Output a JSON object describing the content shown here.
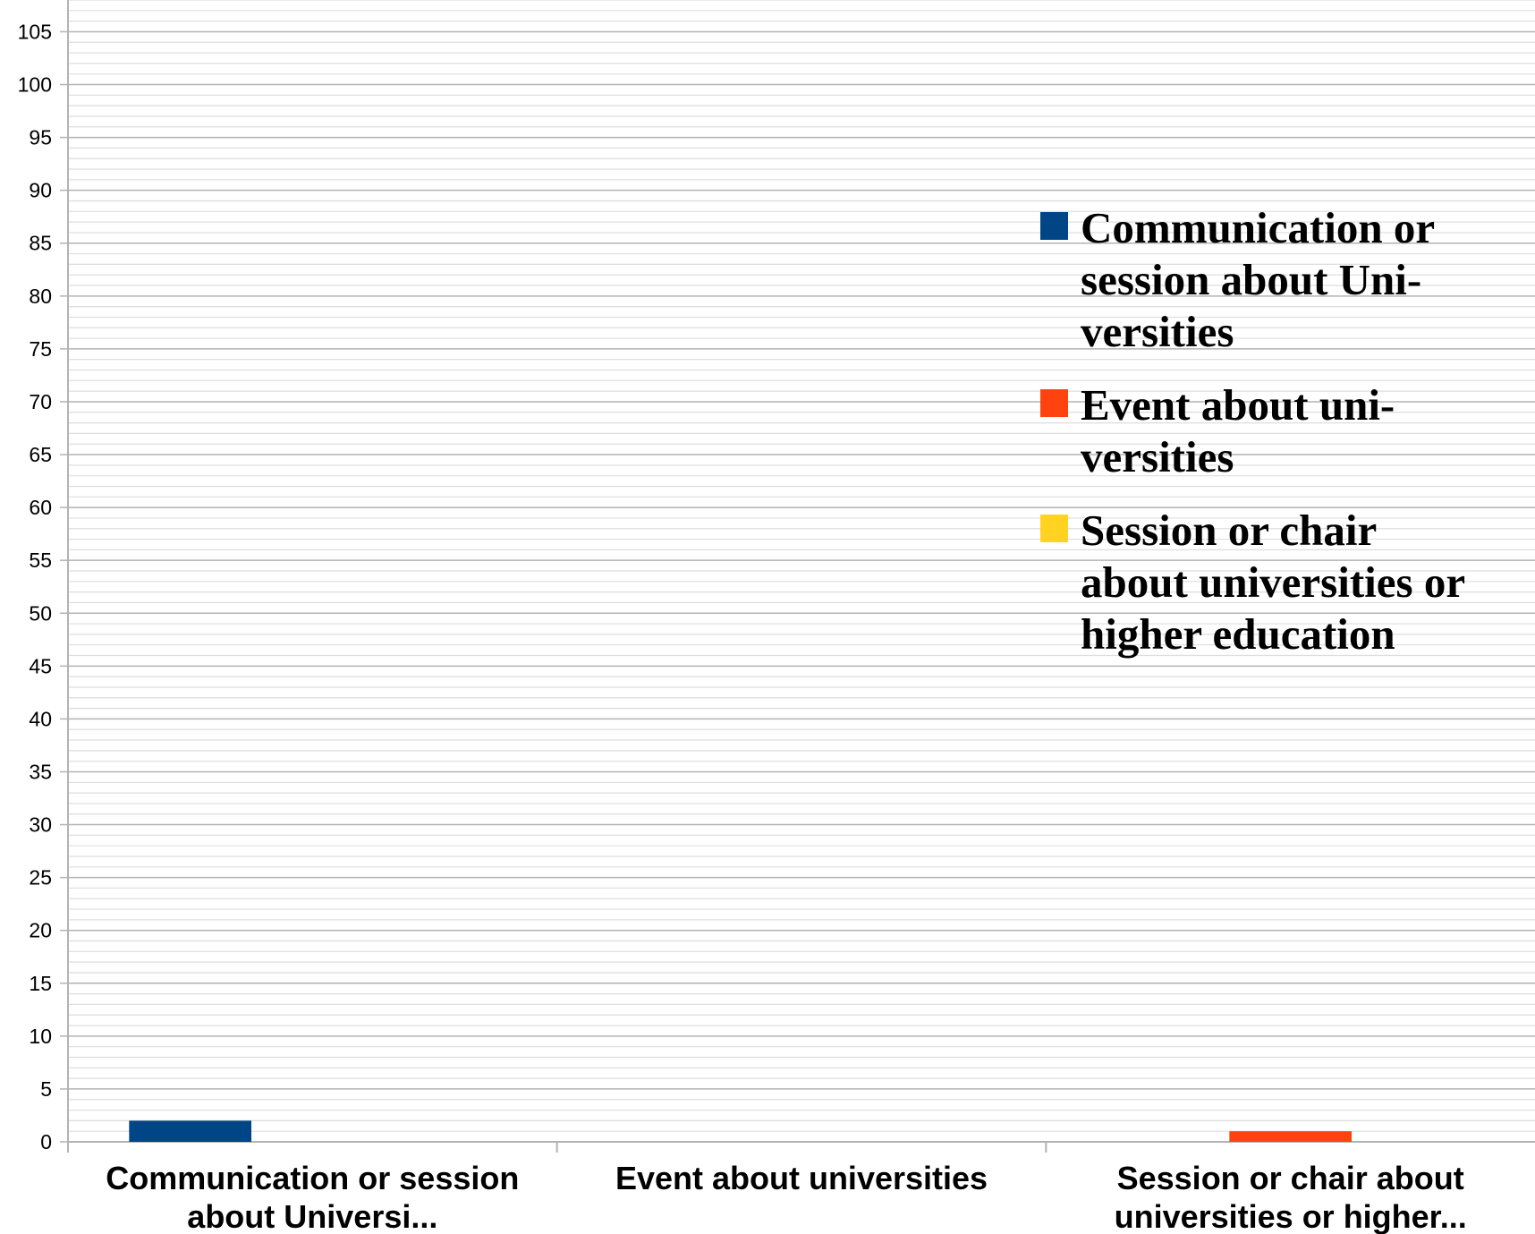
{
  "chart_data": {
    "type": "bar",
    "title": "",
    "xlabel": "",
    "ylabel": "",
    "ylim": [
      0,
      108
    ],
    "y_ticks": [
      0,
      5,
      10,
      15,
      20,
      25,
      30,
      35,
      40,
      45,
      50,
      55,
      60,
      65,
      70,
      75,
      80,
      85,
      90,
      95,
      100,
      105
    ],
    "minor_gridlines": true,
    "grid": true,
    "legend_position": "right",
    "categories": [
      [
        "Communication or session",
        "about Universi..."
      ],
      [
        "Event about universities"
      ],
      [
        "Session or chair about",
        "universities or higher..."
      ]
    ],
    "series": [
      {
        "name": [
          "Communication or",
          "session about Uni-",
          "versities"
        ],
        "color": "#004586",
        "values": [
          2,
          0,
          0
        ]
      },
      {
        "name": [
          "Event about uni-",
          "versities"
        ],
        "color": "#ff420e",
        "values": [
          0,
          0,
          1
        ]
      },
      {
        "name": [
          "Session or chair",
          "about universities or",
          "higher education"
        ],
        "color": "#ffd320",
        "values": [
          0,
          0,
          0
        ]
      }
    ]
  }
}
